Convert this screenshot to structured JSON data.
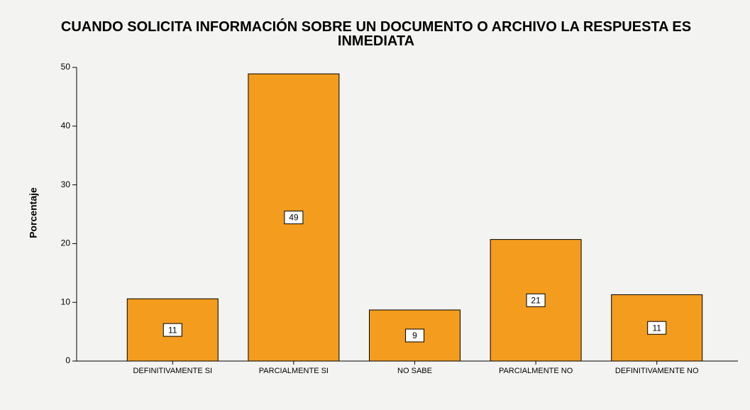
{
  "chart_data": {
    "type": "bar",
    "title": "CUANDO SOLICITA INFORMACIÓN SOBRE UN DOCUMENTO O ARCHIVO LA RESPUESTA ES INMEDIATA",
    "y_label": "Porcentaje",
    "categories": [
      "DEFINITIVAMENTE SI",
      "PARCIALMENTE SI",
      "NO SABE",
      "PARCIALMENTE NO",
      "DEFINITIVAMENTE NO"
    ],
    "values": [
      10.6,
      48.9,
      8.7,
      20.7,
      11.3
    ],
    "value_labels": [
      "11",
      "49",
      "9",
      "21",
      "11"
    ],
    "color": "#f39c1e",
    "ylim": [
      0,
      50
    ],
    "yticks": [
      0,
      10,
      20,
      30,
      40,
      50
    ],
    "grid": false
  }
}
